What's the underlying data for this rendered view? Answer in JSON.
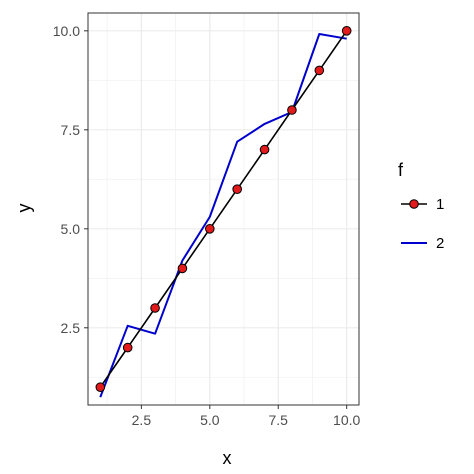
{
  "chart_data": {
    "type": "line",
    "xlabel": "x",
    "ylabel": "y",
    "xlim": [
      0.55,
      10.45
    ],
    "ylim": [
      0.55,
      10.45
    ],
    "x_ticks": [
      2.5,
      5.0,
      7.5,
      10.0
    ],
    "x_tick_labels": [
      "2.5",
      "5.0",
      "7.5",
      "10.0"
    ],
    "y_ticks": [
      2.5,
      5.0,
      7.5,
      10.0
    ],
    "y_tick_labels": [
      "2.5",
      "5.0",
      "7.5",
      "10.0"
    ],
    "grid": true,
    "legend": {
      "title": "f",
      "position": "right"
    },
    "series": [
      {
        "name": "1",
        "style": "line-points",
        "color": "#000000",
        "point_fill": "#e31a1c",
        "x": [
          1,
          2,
          3,
          4,
          5,
          6,
          7,
          8,
          9,
          10
        ],
        "y": [
          1,
          2,
          3,
          4,
          5,
          6,
          7,
          8,
          9,
          10
        ]
      },
      {
        "name": "2",
        "style": "line",
        "color": "#0000cd",
        "x": [
          1,
          2,
          3,
          4,
          5,
          6,
          7,
          8,
          9,
          10
        ],
        "y": [
          0.75,
          2.55,
          2.35,
          4.2,
          5.3,
          7.2,
          7.65,
          7.95,
          9.92,
          9.8
        ]
      }
    ]
  }
}
